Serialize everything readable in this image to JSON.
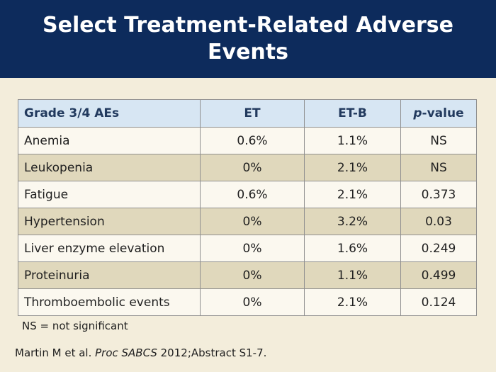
{
  "title": "Select Treatment-Related Adverse Events",
  "table": {
    "headers": [
      "Grade 3/4 AEs",
      "ET",
      "ET-B",
      "-value"
    ],
    "pvalue_prefix": "p",
    "rows": [
      [
        "Anemia",
        "0.6%",
        "1.1%",
        "NS"
      ],
      [
        "Leukopenia",
        "0%",
        "2.1%",
        "NS"
      ],
      [
        "Fatigue",
        "0.6%",
        "2.1%",
        "0.373"
      ],
      [
        "Hypertension",
        "0%",
        "3.2%",
        "0.03"
      ],
      [
        "Liver enzyme elevation",
        "0%",
        "1.6%",
        "0.249"
      ],
      [
        "Proteinuria",
        "0%",
        "1.1%",
        "0.499"
      ],
      [
        "Thromboembolic events",
        "0%",
        "2.1%",
        "0.124"
      ]
    ]
  },
  "footnote": "NS = not significant",
  "citation": {
    "authors": "Martin M et al. ",
    "journal": "Proc SABCS",
    "rest": " 2012;Abstract S1-7."
  },
  "colors": {
    "header_bg": "#0d2b5c",
    "slide_bg": "#f3eddb",
    "table_header_bg": "#d7e6f3",
    "row_alt_bg": "#e0d8bc"
  }
}
